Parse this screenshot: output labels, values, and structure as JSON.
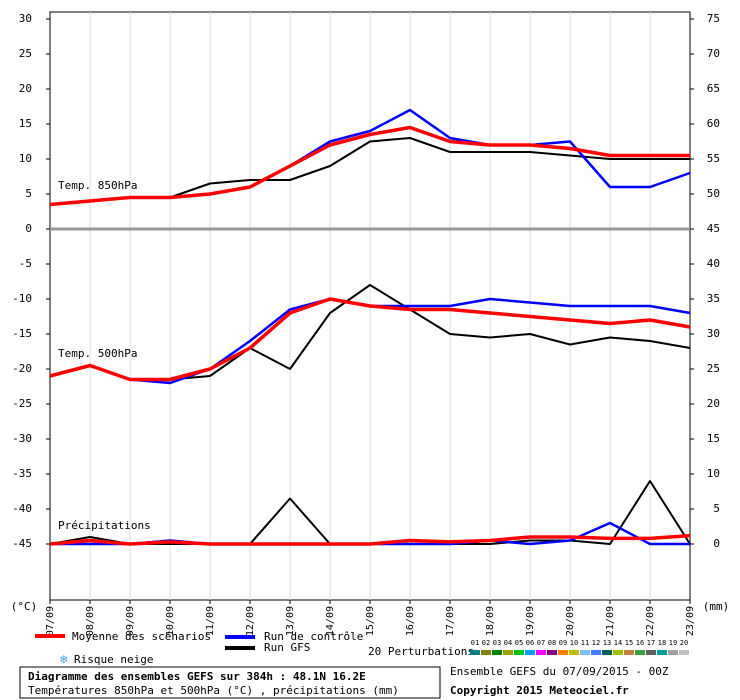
{
  "chart_data": {
    "type": "line",
    "title": "Diagramme des ensembles GEFS sur 384h : 48.1N 16.2E",
    "subtitle": "Températures 850hPa et 500hPa (°C) , précipitations (mm)",
    "run_info": "Ensemble GEFS du 07/09/2015 - 00Z",
    "copyright": "Copyright 2015 Meteociel.fr",
    "ylabel": "(°C)",
    "y2label": "(mm)",
    "categories": [
      "07/09",
      "08/09",
      "09/09",
      "10/09",
      "11/09",
      "12/09",
      "13/09",
      "14/09",
      "15/09",
      "16/09",
      "17/09",
      "18/09",
      "19/09",
      "20/09",
      "21/09",
      "22/09",
      "23/09"
    ],
    "ylim": [
      -53,
      31
    ],
    "yticks": [
      30,
      25,
      20,
      15,
      10,
      5,
      0,
      -5,
      -10,
      -15,
      -20,
      -25,
      -30,
      -35,
      -40,
      -45
    ],
    "y2lim": [
      -8,
      76
    ],
    "y2ticks": [
      75,
      70,
      65,
      60,
      55,
      50,
      45,
      40,
      35,
      30,
      25,
      20,
      15,
      10,
      5,
      0
    ],
    "grid": true,
    "legend": [
      {
        "name": "Moyenne des scénarios",
        "color": "#ff0000"
      },
      {
        "name": "Run de contrôle",
        "color": "#0000ff"
      },
      {
        "name": "Run GFS",
        "color": "#000000"
      }
    ],
    "snow_label": "Risque neige",
    "perturbations": {
      "label": "20 Perturbations",
      "ids": [
        "01",
        "02",
        "03",
        "04",
        "05",
        "06",
        "07",
        "08",
        "09",
        "10",
        "11",
        "12",
        "13",
        "14",
        "15",
        "16",
        "17",
        "18",
        "19",
        "20"
      ],
      "colors": [
        "#008080",
        "#808000",
        "#008000",
        "#a0a000",
        "#00c000",
        "#00a0ff",
        "#ff00ff",
        "#800080",
        "#ff8000",
        "#c0c000",
        "#80c0ff",
        "#4080ff",
        "#006060",
        "#a0c000",
        "#c08040",
        "#40a040",
        "#606060",
        "#00a0a0",
        "#a0a0a0",
        "#c0c0c0"
      ]
    },
    "panels": [
      {
        "label": "Temp. 850hPa",
        "series": [
          {
            "values": [
              3.5,
              4,
              4.5,
              4.5,
              5,
              6,
              9,
              12,
              13.5,
              14.5,
              12.5,
              12,
              12,
              11.5,
              10.5,
              10.5,
              10.5
            ]
          },
          {
            "values": [
              3.5,
              4,
              4.5,
              4.5,
              5,
              6,
              9,
              12.5,
              14,
              17,
              13,
              12,
              12,
              12.5,
              6,
              6,
              8
            ]
          },
          {
            "values": [
              3.5,
              4,
              4.5,
              4.5,
              6.5,
              7,
              7,
              9,
              12.5,
              13,
              11,
              11,
              11,
              10.5,
              10,
              10,
              10
            ]
          }
        ]
      },
      {
        "label": "Temp. 500hPa",
        "series": [
          {
            "values": [
              -21,
              -19.5,
              -21.5,
              -21.5,
              -20,
              -17,
              -12,
              -10,
              -11,
              -11.5,
              -11.5,
              -12,
              -12.5,
              -13,
              -13.5,
              -13,
              -14
            ]
          },
          {
            "values": [
              -21,
              -19.5,
              -21.5,
              -22,
              -20,
              -16,
              -11.5,
              -10,
              -11,
              -11,
              -11,
              -10,
              -10.5,
              -11,
              -11,
              -11,
              -12
            ]
          },
          {
            "values": [
              -21,
              -19.5,
              -21.5,
              -21.5,
              -21,
              -17,
              -20,
              -12,
              -8,
              -11.5,
              -15,
              -15.5,
              -15,
              -16.5,
              -15.5,
              -16,
              -17
            ]
          }
        ]
      },
      {
        "label": "Précipitations",
        "series": [
          {
            "axis": "y2",
            "values": [
              0,
              0.5,
              0,
              0.3,
              0,
              0,
              0,
              0,
              0,
              0.5,
              0.3,
              0.5,
              1,
              1,
              0.8,
              0.8,
              1.2
            ]
          },
          {
            "axis": "y2",
            "values": [
              0,
              0,
              0,
              0.5,
              0,
              0,
              0,
              0,
              0,
              0,
              0,
              0.5,
              0,
              0.5,
              3,
              0,
              0
            ]
          },
          {
            "axis": "y2",
            "values": [
              0,
              1,
              0,
              0,
              0,
              0,
              6.5,
              0,
              0,
              0,
              0,
              0,
              0.5,
              0.5,
              0,
              9,
              0
            ]
          }
        ]
      }
    ]
  }
}
